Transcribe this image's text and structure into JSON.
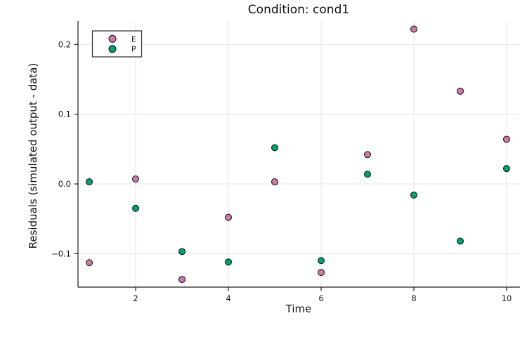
{
  "chart_data": {
    "type": "scatter",
    "title": "Condition: cond1",
    "xlabel": "Time",
    "ylabel": "Residuals (simulated output - data)",
    "x": [
      1,
      2,
      3,
      4,
      5,
      6,
      7,
      8,
      9,
      10
    ],
    "series": [
      {
        "name": "E",
        "color": "#CC79A7",
        "values": [
          -0.113,
          0.007,
          -0.137,
          -0.048,
          0.003,
          -0.127,
          0.042,
          0.222,
          0.133,
          0.064
        ]
      },
      {
        "name": "P",
        "color": "#009E73",
        "values": [
          0.003,
          -0.035,
          -0.097,
          -0.112,
          0.052,
          -0.11,
          0.014,
          -0.016,
          -0.082,
          0.022
        ]
      }
    ],
    "xticks": [
      2,
      4,
      6,
      8,
      10
    ],
    "xtick_labels": [
      "2",
      "4",
      "6",
      "8",
      "10"
    ],
    "yticks": [
      0.2,
      0.1,
      0.0,
      -0.1
    ],
    "ytick_labels": [
      "0.2",
      "0.1",
      "0.0",
      "−0.1"
    ],
    "xlim": [
      0.757,
      10.273
    ],
    "ylim": [
      -0.148,
      0.2336
    ],
    "grid": true,
    "legend_position": "top-left",
    "legend_entries": [
      "E",
      "P"
    ],
    "colors": {
      "marker_stroke": "#101010",
      "grid": "#e5e5e5",
      "axis": "#1c1c1c",
      "text": "#161616",
      "legend_border": "#3a3a3a",
      "legend_fill": "#ffffff",
      "background": "#ffffff"
    }
  }
}
